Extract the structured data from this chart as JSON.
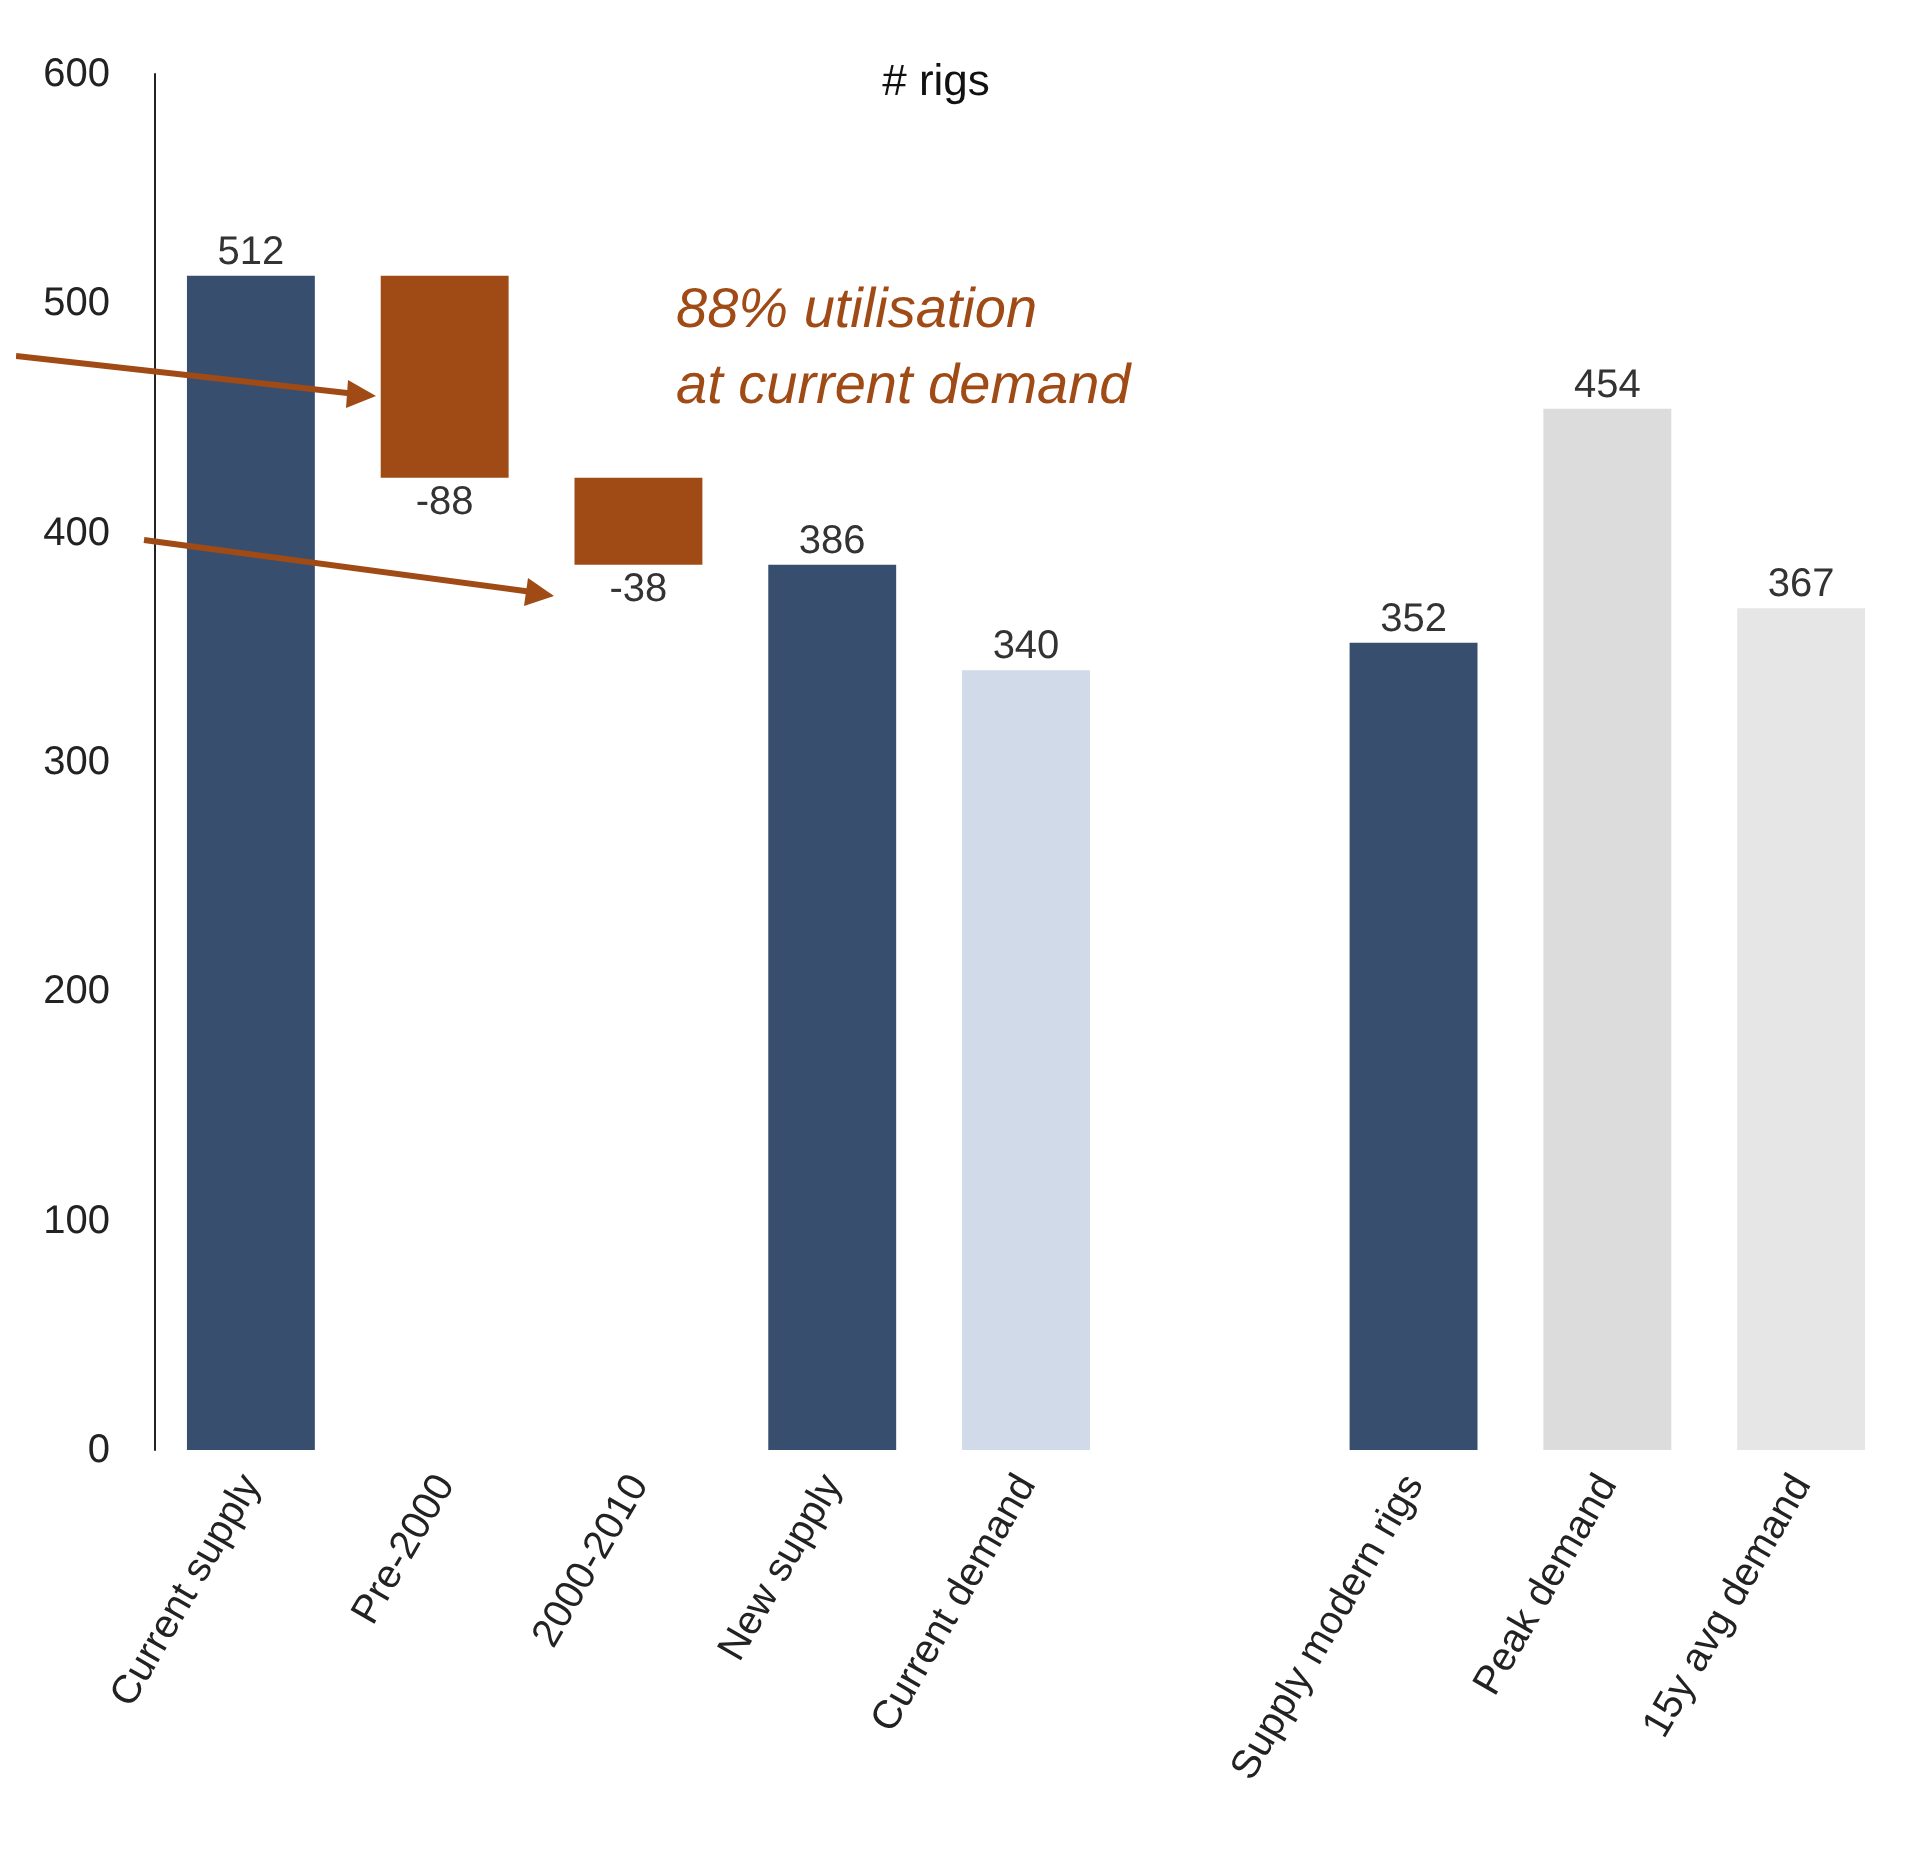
{
  "chart_data": {
    "type": "bar",
    "title": "# rigs",
    "categories": [
      "Current supply",
      "Pre-2000",
      "2000-2010",
      "New supply",
      "Current demand",
      null,
      "Supply modern rigs",
      "Peak demand",
      "15y avg demand"
    ],
    "values": [
      512,
      -88,
      -38,
      386,
      340,
      null,
      352,
      454,
      367
    ],
    "base": [
      0,
      512,
      424,
      0,
      0,
      null,
      0,
      0,
      0
    ],
    "colors": [
      "#374e6e",
      "#a04b16",
      "#a04b16",
      "#374e6e",
      "#d0dae8",
      null,
      "#374e6e",
      "#dcdcdc",
      "#e6e6e6"
    ],
    "ylim": [
      0,
      600
    ],
    "yticks": [
      0,
      100,
      200,
      300,
      400,
      500,
      600
    ],
    "data_labels": true,
    "grid": false,
    "annotations": [
      "88% utilisation\nat current demand"
    ]
  }
}
